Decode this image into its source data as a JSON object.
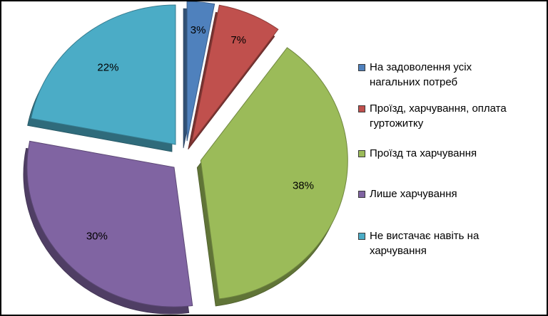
{
  "chart_data": {
    "type": "pie",
    "style": "exploded-3d",
    "slices": [
      {
        "label": "На задоволення усіх нагальних потреб",
        "value": 3,
        "display": "3%",
        "color": "#4F81BD"
      },
      {
        "label": "Проїзд, харчування, оплата гуртожитку",
        "value": 7,
        "display": "7%",
        "color": "#C0504D"
      },
      {
        "label": "Проїзд та харчування",
        "value": 38,
        "display": "38%",
        "color": "#9BBB59"
      },
      {
        "label": "Лише харчування",
        "value": 30,
        "display": "30%",
        "color": "#8064A2"
      },
      {
        "label": "Не вистачає навіть на харчування",
        "value": 22,
        "display": "22%",
        "color": "#4BACC6"
      }
    ],
    "legend_position": "right"
  },
  "legend": {
    "items": [
      {
        "line1": "На задоволення усіх",
        "line2": "нагальних потреб",
        "color": "#4F81BD"
      },
      {
        "line1": "Проїзд, харчування, оплата",
        "line2": "гуртожитку",
        "color": "#C0504D"
      },
      {
        "line1": "Проїзд та харчування",
        "line2": "",
        "color": "#9BBB59"
      },
      {
        "line1": "Лише харчування",
        "line2": "",
        "color": "#8064A2"
      },
      {
        "line1": "Не вистачає навіть на",
        "line2": "харчування",
        "color": "#4BACC6"
      }
    ]
  }
}
